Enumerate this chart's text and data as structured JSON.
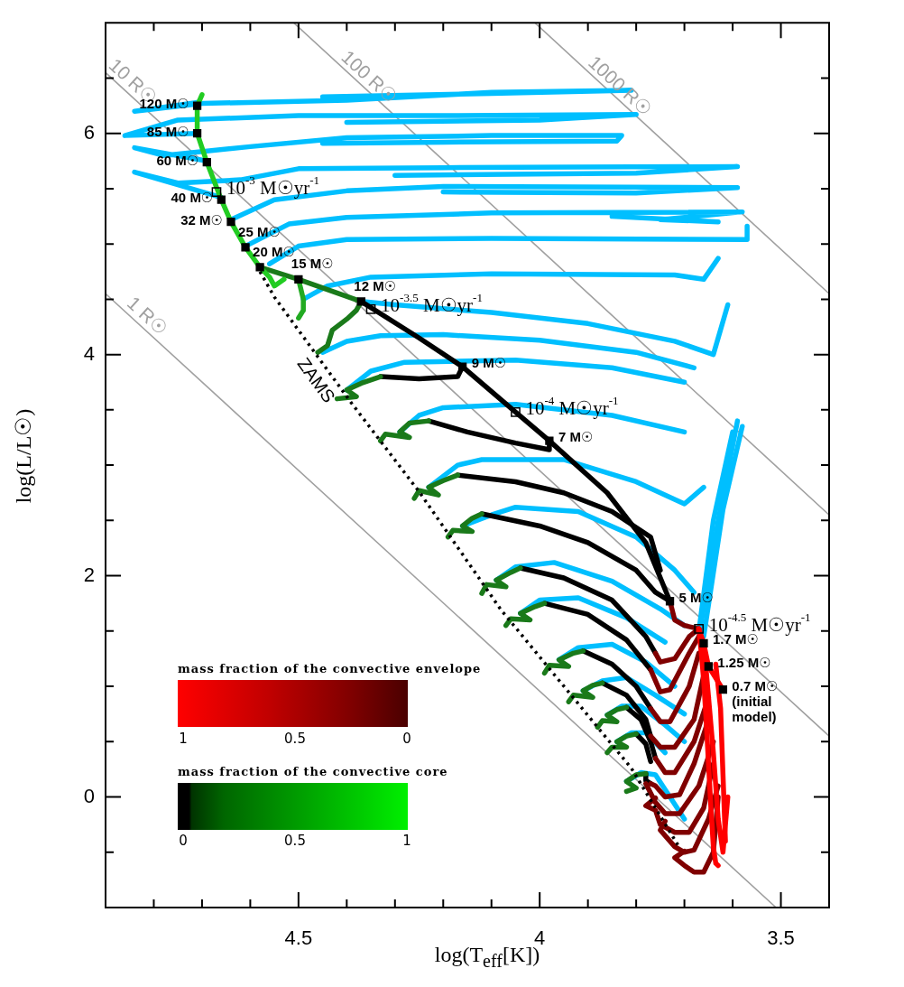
{
  "chart_data": {
    "type": "line",
    "xlabel": "log(T$_{eff}$[K])",
    "ylabel": "log(L/L☉)",
    "xlim": [
      4.9,
      3.4
    ],
    "xticks": [
      {
        "value": 4.8,
        "label": null
      },
      {
        "value": 4.7,
        "label": null
      },
      {
        "value": 4.6,
        "label": null
      },
      4.5,
      {
        "value": 4.4,
        "label": null
      },
      {
        "value": 4.3,
        "label": null
      },
      {
        "value": 4.2,
        "label": null
      },
      {
        "value": 4.1,
        "label": null
      },
      4,
      {
        "value": 3.9,
        "label": null
      },
      {
        "value": 3.8,
        "label": null
      },
      {
        "value": 3.7,
        "label": null
      },
      {
        "value": 3.6,
        "label": null
      },
      3.5
    ],
    "ylim": [
      -1,
      7
    ],
    "yticks": [
      {
        "value": -0.5,
        "label": null
      },
      0,
      {
        "value": 0.5,
        "label": null
      },
      {
        "value": 1,
        "label": null
      },
      {
        "value": 1.5,
        "label": null
      },
      2,
      {
        "value": 2.5,
        "label": null
      },
      {
        "value": 3,
        "label": null
      },
      {
        "value": 3.5,
        "label": null
      },
      4,
      {
        "value": 4.5,
        "label": null
      },
      {
        "value": 5,
        "label": null
      },
      {
        "value": 5.5,
        "label": null
      },
      6,
      {
        "value": 6.5,
        "label": null
      }
    ],
    "legend": false,
    "line_style": "solid",
    "series": [
      {
        "color": "#a0a0a0",
        "x": [
          4.9,
          3.51
        ],
        "values": [
          4.55,
          -1
        ]
      },
      {
        "color": "#a0a0a0",
        "x": [
          4.9,
          3.4
        ],
        "values": [
          6.55,
          0.55
        ]
      },
      {
        "color": "#a0a0a0",
        "x": [
          4.51,
          3.4
        ],
        "values": [
          7,
          2.55
        ]
      },
      {
        "color": "#a0a0a0",
        "x": [
          4.01,
          3.4
        ],
        "values": [
          7,
          4.55
        ]
      },
      {
        "color": "#00bfff",
        "x": [
          4.71,
          4.84,
          4.7,
          4.4,
          4.1,
          3.81,
          4.1,
          4.45
        ],
        "values": [
          6.28,
          6.2,
          6.27,
          6.3,
          6.37,
          6.39,
          6.36,
          6.33
        ]
      },
      {
        "color": "#00bfff",
        "x": [
          4.71,
          4.86,
          4.75,
          4.5,
          4.2,
          3.8,
          4.0,
          4.4
        ],
        "values": [
          6.0,
          5.98,
          6.12,
          6.16,
          6.16,
          6.17,
          6.12,
          6.1
        ]
      },
      {
        "color": "#00bfff",
        "x": [
          4.69,
          4.84,
          4.78,
          4.6,
          4.4,
          4.1,
          3.83,
          3.84,
          4.2,
          4.45
        ],
        "values": [
          5.75,
          5.87,
          5.8,
          5.88,
          5.96,
          5.98,
          5.98,
          5.93,
          5.92,
          5.91
        ]
      },
      {
        "color": "#00bfff",
        "x": [
          4.66,
          4.84,
          4.75,
          4.62,
          4.5,
          4.2,
          3.59,
          3.8,
          4.3
        ],
        "values": [
          5.42,
          5.65,
          5.55,
          5.58,
          5.68,
          5.69,
          5.7,
          5.64,
          5.62
        ]
      },
      {
        "color": "#00bfff",
        "x": [
          4.64,
          4.55,
          4.4,
          4.2,
          3.59,
          3.8,
          4.2
        ],
        "values": [
          5.22,
          5.4,
          5.48,
          5.52,
          5.51,
          5.46,
          5.47
        ]
      },
      {
        "color": "#00bfff",
        "x": [
          4.61,
          4.52,
          4.4,
          4.1,
          3.58,
          3.75,
          3.63,
          3.85
        ],
        "values": [
          4.98,
          5.18,
          5.24,
          5.28,
          5.29,
          5.22,
          5.2,
          5.25
        ]
      },
      {
        "color": "#00bfff",
        "x": [
          4.56,
          4.5,
          4.4,
          4.1,
          3.57,
          3.57
        ],
        "values": [
          4.82,
          4.98,
          5.04,
          5.05,
          5.04,
          5.16
        ]
      },
      {
        "color": "#00bfff",
        "x": [
          4.49,
          4.44,
          4.35,
          4.1,
          3.72,
          3.66,
          3.63
        ],
        "values": [
          4.5,
          4.62,
          4.7,
          4.73,
          4.72,
          4.68,
          4.87
        ]
      },
      {
        "color": "#00bfff",
        "x": [
          4.37,
          4.3,
          4.1,
          3.9,
          3.72,
          3.64,
          3.61
        ],
        "values": [
          4.48,
          4.45,
          4.38,
          4.28,
          4.12,
          4.0,
          4.45
        ]
      },
      {
        "color": "#00bfff",
        "x": [
          4.45,
          4.4,
          4.33,
          4.2,
          4.0,
          3.8,
          3.68
        ],
        "values": [
          4.02,
          4.12,
          4.17,
          4.18,
          4.13,
          4.02,
          3.88
        ]
      },
      {
        "color": "#00bfff",
        "x": [
          4.4,
          4.35,
          4.28,
          4.05,
          3.85,
          3.7
        ],
        "values": [
          3.68,
          3.85,
          3.93,
          3.95,
          3.88,
          3.75
        ]
      },
      {
        "color": "#00bfff",
        "x": [
          4.29,
          4.25,
          4.2,
          4.05,
          3.85,
          3.7
        ],
        "values": [
          3.3,
          3.45,
          3.52,
          3.55,
          3.45,
          3.3
        ]
      },
      {
        "color": "#00bfff",
        "x": [
          4.23,
          4.17,
          4.12,
          3.95,
          3.8,
          3.7,
          3.66
        ],
        "values": [
          2.8,
          3.0,
          3.05,
          3.05,
          2.85,
          2.65,
          2.8
        ]
      },
      {
        "color": "#00bfff",
        "x": [
          4.16,
          4.1,
          4.05,
          3.92,
          3.8,
          3.72,
          3.68
        ],
        "values": [
          2.45,
          2.55,
          2.62,
          2.58,
          2.35,
          2.05,
          1.85
        ]
      },
      {
        "color": "#00bfff",
        "x": [
          4.09,
          4.05,
          3.97,
          3.85,
          3.75,
          3.7
        ],
        "values": [
          1.96,
          2.08,
          2.12,
          1.95,
          1.7,
          1.55
        ]
      },
      {
        "color": "#00bfff",
        "x": [
          4.04,
          4.0,
          3.92,
          3.82,
          3.74
        ],
        "values": [
          1.66,
          1.78,
          1.8,
          1.62,
          1.4
        ]
      },
      {
        "color": "#00bfff",
        "x": [
          3.96,
          3.92,
          3.85,
          3.78,
          3.72
        ],
        "values": [
          1.24,
          1.35,
          1.38,
          1.22,
          1.0
        ]
      },
      {
        "color": "#00bfff",
        "x": [
          3.91,
          3.87,
          3.82,
          3.76,
          3.7
        ],
        "values": [
          0.96,
          1.05,
          1.08,
          0.92,
          0.75
        ]
      },
      {
        "color": "#00bfff",
        "x": [
          3.86,
          3.83,
          3.79,
          3.74,
          3.7
        ],
        "values": [
          0.74,
          0.82,
          0.82,
          0.65,
          0.5
        ]
      },
      {
        "color": "#00bfff",
        "x": [
          3.84,
          3.81,
          3.78,
          3.74
        ],
        "values": [
          0.5,
          0.58,
          0.58,
          0.4
        ]
      },
      {
        "color": "#00bfff",
        "x": [
          3.82,
          3.79,
          3.76,
          3.73,
          3.7
        ],
        "values": [
          0.14,
          0.22,
          0.2,
          0.0,
          -0.2
        ]
      },
      {
        "color": "#00bfff",
        "x": [
          3.67,
          3.63,
          3.59
        ],
        "values": [
          1.45,
          2.5,
          3.4
        ]
      },
      {
        "color": "#00bfff",
        "x": [
          3.66,
          3.62,
          3.58
        ],
        "values": [
          1.45,
          2.6,
          3.35
        ]
      },
      {
        "color": "#00bfff",
        "x": [
          3.67,
          3.64,
          3.6
        ],
        "values": [
          1.5,
          2.5,
          3.3
        ]
      },
      {
        "color": "#000000",
        "x": [
          4.16,
          4.17,
          4.25,
          4.33
        ],
        "values": [
          3.89,
          3.8,
          3.78,
          3.8
        ]
      },
      {
        "color": "#000000",
        "x": [
          3.98,
          3.98,
          4.05,
          4.15,
          4.23
        ],
        "values": [
          3.22,
          3.14,
          3.2,
          3.3,
          3.4
        ]
      },
      {
        "color": "#000000",
        "x": [
          3.75,
          3.77,
          3.85,
          3.95,
          4.05,
          4.17
        ],
        "values": [
          2.05,
          2.35,
          2.58,
          2.75,
          2.85,
          2.91
        ]
      },
      {
        "color": "#000000",
        "x": [
          4.12,
          4.0,
          3.9,
          3.8,
          3.76,
          3.73
        ],
        "values": [
          2.56,
          2.45,
          2.3,
          2.05,
          1.85,
          1.77
        ]
      },
      {
        "color": "#000000",
        "x": [
          4.04,
          3.95,
          3.85,
          3.78,
          3.76
        ],
        "values": [
          2.07,
          1.98,
          1.78,
          1.45,
          1.3
        ]
      },
      {
        "color": "#000000",
        "x": [
          3.99,
          3.9,
          3.82,
          3.77
        ],
        "values": [
          1.75,
          1.65,
          1.42,
          1.15
        ]
      },
      {
        "color": "#000000",
        "x": [
          3.91,
          3.85,
          3.8,
          3.77
        ],
        "values": [
          1.32,
          1.2,
          1.0,
          0.8
        ]
      },
      {
        "color": "#000000",
        "x": [
          3.87,
          3.82,
          3.78,
          3.77
        ],
        "values": [
          1.03,
          0.92,
          0.7,
          0.55
        ]
      },
      {
        "color": "#000000",
        "x": [
          3.82,
          3.79,
          3.77,
          3.76
        ],
        "values": [
          0.81,
          0.7,
          0.5,
          0.35
        ]
      },
      {
        "color": "#000000",
        "x": [
          3.8,
          3.78,
          3.77
        ],
        "values": [
          0.57,
          0.48,
          0.32
        ]
      },
      {
        "color": "#000000",
        "x": [
          3.78,
          3.78,
          3.77
        ],
        "values": [
          0.21,
          0.15,
          0.12
        ]
      },
      {
        "color": "#000000",
        "x": [
          3.73,
          3.78,
          3.86,
          3.98,
          4.05,
          4.16,
          4.25,
          4.37
        ],
        "values": [
          1.77,
          2.3,
          2.75,
          3.22,
          3.48,
          3.89,
          4.15,
          4.48
        ]
      },
      {
        "color": "#800000",
        "x": [
          3.73,
          3.72,
          3.7,
          3.67
        ],
        "values": [
          1.77,
          1.6,
          1.55,
          1.52
        ]
      },
      {
        "color": "#800000",
        "x": [
          3.76,
          3.75,
          3.72,
          3.69,
          3.67
        ],
        "values": [
          1.3,
          1.22,
          1.25,
          1.45,
          1.52
        ]
      },
      {
        "color": "#800000",
        "x": [
          3.77,
          3.75,
          3.73,
          3.69,
          3.67
        ],
        "values": [
          1.15,
          0.95,
          0.97,
          1.3,
          1.45
        ]
      },
      {
        "color": "#800000",
        "x": [
          3.77,
          3.75,
          3.73,
          3.69,
          3.67
        ],
        "values": [
          0.8,
          0.68,
          0.68,
          1.0,
          1.3
        ]
      },
      {
        "color": "#800000",
        "x": [
          3.77,
          3.75,
          3.72,
          3.68,
          3.66
        ],
        "values": [
          0.55,
          0.45,
          0.45,
          0.7,
          1.1
        ]
      },
      {
        "color": "#800000",
        "x": [
          3.76,
          3.74,
          3.72,
          3.68,
          3.65
        ],
        "values": [
          0.35,
          0.22,
          0.22,
          0.5,
          0.9
        ]
      },
      {
        "color": "#800000",
        "x": [
          3.77,
          3.76,
          3.74,
          3.71,
          3.68,
          3.65
        ],
        "values": [
          0.12,
          0.1,
          0.0,
          0.02,
          0.3,
          0.7
        ]
      },
      {
        "color": "#800000",
        "x": [
          3.78,
          3.76,
          3.74,
          3.71,
          3.67,
          3.64
        ],
        "values": [
          0.12,
          -0.05,
          -0.15,
          -0.15,
          0.1,
          0.5
        ]
      },
      {
        "color": "#800000",
        "x": [
          3.76,
          3.78,
          3.76,
          3.75,
          3.72,
          3.69,
          3.66,
          3.64
        ],
        "values": [
          -0.01,
          -0.08,
          -0.12,
          -0.25,
          -0.32,
          -0.32,
          -0.1,
          0.3
        ]
      },
      {
        "color": "#800000",
        "x": [
          3.74,
          3.75,
          3.74,
          3.72,
          3.7,
          3.68,
          3.65,
          3.63
        ],
        "values": [
          -0.22,
          -0.3,
          -0.35,
          -0.45,
          -0.5,
          -0.48,
          -0.2,
          0.1
        ]
      },
      {
        "color": "#800000",
        "x": [
          3.7,
          3.72,
          3.7,
          3.68,
          3.66,
          3.64,
          3.63
        ],
        "values": [
          -0.49,
          -0.55,
          -0.62,
          -0.68,
          -0.68,
          -0.5,
          0.0
        ]
      },
      {
        "color": "#ff0000",
        "x": [
          3.62,
          3.65,
          3.66,
          3.67
        ],
        "values": [
          0.97,
          1.18,
          1.39,
          1.52
        ]
      },
      {
        "color": "#ff0000",
        "x": [
          3.67,
          3.665,
          3.66,
          3.655,
          3.65,
          3.645,
          3.64,
          3.635,
          3.63
        ],
        "values": [
          1.52,
          1.3,
          1.05,
          0.7,
          0.3,
          -0.1,
          -0.45,
          -0.6,
          -0.62
        ]
      },
      {
        "color": "#ff0000",
        "x": [
          3.615,
          3.62,
          3.625,
          3.635
        ],
        "values": [
          -0.4,
          0.2,
          0.8,
          1.2
        ]
      },
      {
        "color": "#ff0000",
        "x": [
          3.66,
          3.65,
          3.64,
          3.63,
          3.62,
          3.61
        ],
        "values": [
          1.4,
          0.9,
          0.4,
          -0.2,
          -0.5,
          0.0
        ]
      },
      {
        "color": "#1a7a1a",
        "x": [
          4.33,
          4.37,
          4.4,
          4.38,
          4.42
        ],
        "values": [
          3.8,
          3.74,
          3.68,
          3.62,
          3.6
        ]
      },
      {
        "color": "#1a7a1a",
        "x": [
          4.23,
          4.27,
          4.29,
          4.27,
          4.32,
          4.33
        ],
        "values": [
          3.4,
          3.38,
          3.3,
          3.25,
          3.28,
          3.22
        ]
      },
      {
        "color": "#1a7a1a",
        "x": [
          4.17,
          4.2,
          4.23,
          4.21,
          4.25,
          4.26
        ],
        "values": [
          2.91,
          2.86,
          2.8,
          2.73,
          2.77,
          2.7
        ]
      },
      {
        "color": "#1a7a1a",
        "x": [
          4.12,
          4.14,
          4.16,
          4.14,
          4.18,
          4.19
        ],
        "values": [
          2.56,
          2.52,
          2.45,
          2.4,
          2.41,
          2.35
        ]
      },
      {
        "color": "#1a7a1a",
        "x": [
          4.04,
          4.06,
          4.09,
          4.07,
          4.11,
          4.12
        ],
        "values": [
          2.07,
          2.03,
          1.96,
          1.9,
          1.92,
          1.84
        ]
      },
      {
        "color": "#1a7a1a",
        "x": [
          3.99,
          4.01,
          4.04,
          4.02,
          4.06,
          4.07
        ],
        "values": [
          1.75,
          1.72,
          1.66,
          1.6,
          1.61,
          1.55
        ]
      },
      {
        "color": "#1a7a1a",
        "x": [
          3.91,
          3.93,
          3.96,
          3.94,
          3.98,
          3.99
        ],
        "values": [
          1.32,
          1.3,
          1.24,
          1.18,
          1.19,
          1.12
        ]
      },
      {
        "color": "#1a7a1a",
        "x": [
          3.87,
          3.89,
          3.91,
          3.89,
          3.93,
          3.94
        ],
        "values": [
          1.03,
          1.01,
          0.96,
          0.9,
          0.92,
          0.86
        ]
      },
      {
        "color": "#1a7a1a",
        "x": [
          3.82,
          3.84,
          3.86,
          3.84,
          3.87,
          3.88
        ],
        "values": [
          0.81,
          0.79,
          0.74,
          0.68,
          0.69,
          0.63
        ]
      },
      {
        "color": "#1a7a1a",
        "x": [
          3.8,
          3.82,
          3.84,
          3.82,
          3.85,
          3.86
        ],
        "values": [
          0.57,
          0.55,
          0.5,
          0.45,
          0.45,
          0.4
        ]
      },
      {
        "color": "#1a7a1a",
        "x": [
          3.78,
          3.8,
          3.82,
          3.8,
          3.82
        ],
        "values": [
          0.21,
          0.2,
          0.14,
          0.08,
          0.05
        ]
      },
      {
        "color": "#1a7a1a",
        "x": [
          4.37,
          4.38,
          4.4,
          4.43,
          4.44,
          4.46
        ],
        "values": [
          4.48,
          4.4,
          4.32,
          4.22,
          4.08,
          4.02
        ]
      },
      {
        "color": "#1a7a1a",
        "x": [
          4.37,
          4.5,
          4.58
        ],
        "values": [
          4.48,
          4.68,
          4.79
        ]
      },
      {
        "color": "#22aa22",
        "x": [
          4.5,
          4.49,
          4.49,
          4.5
        ],
        "values": [
          4.68,
          4.5,
          4.4,
          4.33
        ]
      },
      {
        "color": "#22cc22",
        "x": [
          4.58,
          4.56,
          4.55,
          4.53
        ],
        "values": [
          4.79,
          4.7,
          4.62,
          4.68
        ]
      },
      {
        "color": "#22cc22",
        "x": [
          4.58,
          4.61,
          4.64,
          4.66,
          4.69,
          4.71,
          4.71,
          4.7
        ],
        "values": [
          4.79,
          4.97,
          5.2,
          5.4,
          5.74,
          6.0,
          6.25,
          6.35
        ]
      },
      {
        "name": "ZAMS",
        "color": "#000000",
        "line_style": "dotted",
        "x": [
          4.58,
          4.55,
          4.39,
          4.25,
          4.08,
          3.81,
          3.71
        ],
        "values": [
          4.75,
          4.52,
          3.56,
          2.76,
          1.69,
          0.26,
          -0.46
        ]
      },
      {
        "type": "scatter",
        "marker": "square",
        "color": "#000000",
        "x": [
          4.71,
          4.71,
          4.69,
          4.66,
          4.64,
          4.61,
          4.58,
          4.5,
          4.37,
          4.16,
          3.98,
          3.73,
          3.66,
          3.65,
          3.62
        ],
        "values": [
          6.25,
          6.0,
          5.74,
          5.4,
          5.2,
          4.97,
          4.79,
          4.68,
          4.48,
          3.89,
          3.22,
          1.77,
          1.39,
          1.18,
          0.97
        ]
      },
      {
        "type": "scatter",
        "marker": "square",
        "color": "#000000",
        "x": [
          4.67,
          4.35,
          4.05,
          3.67
        ],
        "values": [
          5.47,
          4.41,
          3.48,
          1.52
        ]
      }
    ],
    "annotations": [
      {
        "text": "1 R☉",
        "x": 4.83,
        "y": 4.27
      },
      {
        "text": "10 R☉",
        "x": 4.86,
        "y": 6.39
      },
      {
        "text": "100 R☉",
        "x": 4.37,
        "y": 6.43
      },
      {
        "text": "1000 R☉",
        "x": 3.85,
        "y": 6.35
      },
      {
        "text": "120 M☉",
        "x": 4.71,
        "y": 6.25
      },
      {
        "text": "85 M☉",
        "x": 4.71,
        "y": 6.0
      },
      {
        "text": "60 M☉",
        "x": 4.69,
        "y": 5.74
      },
      {
        "text": "40 M☉",
        "x": 4.66,
        "y": 5.4
      },
      {
        "text": "32 M☉",
        "x": 4.64,
        "y": 5.2
      },
      {
        "text": "25 M☉",
        "x": 4.61,
        "y": 4.97
      },
      {
        "text": "20 M☉",
        "x": 4.58,
        "y": 4.79
      },
      {
        "text": "15 M☉",
        "x": 4.5,
        "y": 4.68
      },
      {
        "text": "12 M☉",
        "x": 4.37,
        "y": 4.48
      },
      {
        "text": "9 M☉",
        "x": 4.16,
        "y": 3.89
      },
      {
        "text": "7 M☉",
        "x": 3.98,
        "y": 3.22
      },
      {
        "text": "5 M☉",
        "x": 3.73,
        "y": 1.77
      },
      {
        "text": "1.7 M☉",
        "x": 3.66,
        "y": 1.39
      },
      {
        "text": "1.25 M☉",
        "x": 3.65,
        "y": 1.18
      },
      {
        "text": "0.7 M☉\n(initial\nmodel)",
        "x": 3.62,
        "y": 0.97
      },
      {
        "text": "10$^{-3}$ M☉yr$^{-1}$",
        "x": 4.67,
        "y": 5.47
      },
      {
        "text": "10$^{-3.5}$ M☉yr$^{-1}$",
        "x": 4.35,
        "y": 4.41
      },
      {
        "text": "10$^{-4}$ M☉yr$^{-1}$",
        "x": 4.05,
        "y": 3.48
      },
      {
        "text": "10$^{-4.5}$ M☉yr$^{-1}$",
        "x": 3.67,
        "y": 1.52
      },
      "mass fraction of the convective envelope",
      "1",
      "0.5",
      "0",
      "mass fraction of the convective core",
      "0",
      "0.5",
      "1"
    ]
  }
}
